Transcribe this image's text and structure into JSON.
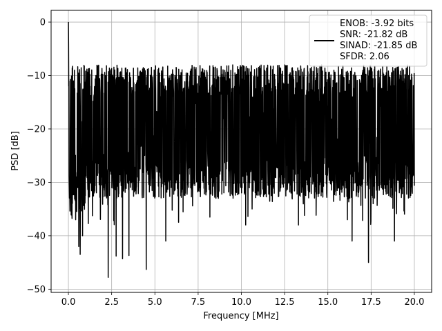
{
  "chart_data": {
    "type": "line",
    "title": "",
    "xlabel": "Frequency [MHz]",
    "ylabel": "PSD [dB]",
    "xlim": [
      -1.0,
      21.0
    ],
    "ylim": [
      -50.6,
      2.2
    ],
    "grid": true,
    "x_ticks": [
      0.0,
      2.5,
      5.0,
      7.5,
      10.0,
      12.5,
      15.0,
      17.5,
      20.0
    ],
    "x_tick_labels": [
      "0.0",
      "2.5",
      "5.0",
      "7.5",
      "10.0",
      "12.5",
      "15.0",
      "17.5",
      "20.0"
    ],
    "y_ticks": [
      0,
      -10,
      -20,
      -30,
      -40,
      -50
    ],
    "y_tick_labels": [
      "0",
      "−10",
      "−20",
      "−30",
      "−40",
      "−50"
    ],
    "legend_position": "top-right",
    "series": [
      {
        "color": "#000000",
        "x_start": 0.0,
        "x_end": 20.0,
        "x_step": 0.01,
        "noise_floor_mean": -20.0,
        "noise_upper_max": -8.0,
        "peak": {
          "x": 0.0,
          "y": 0.0
        },
        "deep_nulls": [
          {
            "x": 0.42,
            "y": -37.0
          },
          {
            "x": 0.6,
            "y": -42.0
          },
          {
            "x": 0.68,
            "y": -43.5
          },
          {
            "x": 0.82,
            "y": -40.0
          },
          {
            "x": 2.3,
            "y": -47.8
          },
          {
            "x": 2.76,
            "y": -43.8
          },
          {
            "x": 3.13,
            "y": -44.3
          },
          {
            "x": 3.5,
            "y": -43.7
          },
          {
            "x": 4.5,
            "y": -46.3
          },
          {
            "x": 5.63,
            "y": -41.0
          },
          {
            "x": 13.3,
            "y": -38.0
          },
          {
            "x": 16.4,
            "y": -41.0
          },
          {
            "x": 17.35,
            "y": -45.0
          },
          {
            "x": 18.85,
            "y": -41.0
          }
        ]
      }
    ],
    "legend_entries": [
      "ENOB: -3.92 bits",
      "SNR: -21.82 dB",
      "SINAD: -21.85 dB",
      "SFDR: 2.06"
    ]
  }
}
